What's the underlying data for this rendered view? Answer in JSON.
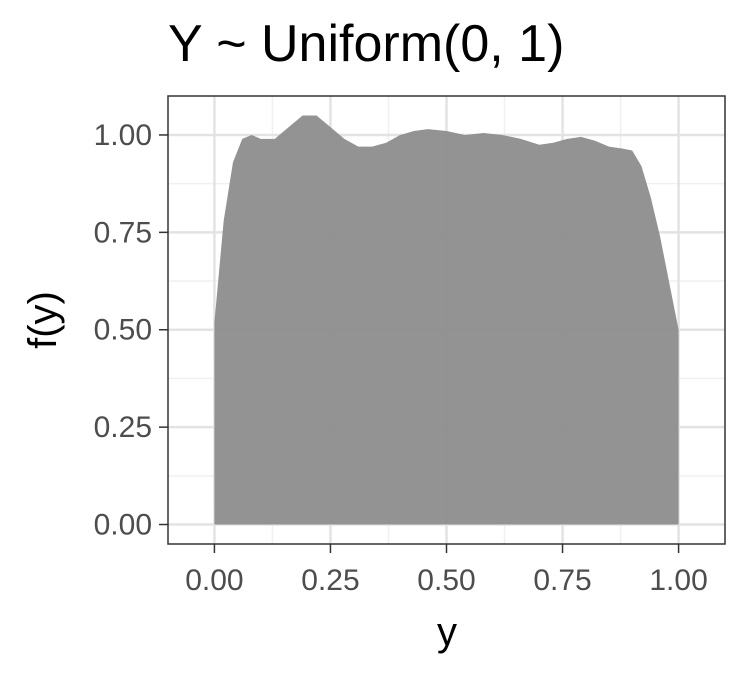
{
  "chart_data": {
    "type": "area",
    "title": "Y ~ Uniform(0, 1)",
    "xlabel": "y",
    "ylabel": "f(y)",
    "xlim": [
      -0.1,
      1.1
    ],
    "ylim": [
      -0.05,
      1.1
    ],
    "x_ticks": [
      "0.00",
      "0.25",
      "0.50",
      "0.75",
      "1.00"
    ],
    "y_ticks": [
      "0.00",
      "0.25",
      "0.50",
      "0.75",
      "1.00"
    ],
    "grid": true,
    "legend": "none",
    "fill_color": "#8f8f8f",
    "x": [
      0.0,
      0.02,
      0.04,
      0.06,
      0.08,
      0.1,
      0.13,
      0.16,
      0.19,
      0.22,
      0.25,
      0.28,
      0.31,
      0.34,
      0.37,
      0.4,
      0.43,
      0.46,
      0.5,
      0.54,
      0.58,
      0.62,
      0.66,
      0.7,
      0.73,
      0.76,
      0.79,
      0.82,
      0.85,
      0.88,
      0.9,
      0.92,
      0.94,
      0.96,
      0.98,
      1.0
    ],
    "y": [
      0.52,
      0.78,
      0.93,
      0.99,
      1.0,
      0.99,
      0.99,
      1.02,
      1.05,
      1.05,
      1.02,
      0.99,
      0.97,
      0.97,
      0.98,
      1.0,
      1.01,
      1.015,
      1.01,
      1.0,
      1.005,
      1.0,
      0.99,
      0.975,
      0.98,
      0.99,
      0.995,
      0.985,
      0.97,
      0.965,
      0.96,
      0.92,
      0.84,
      0.74,
      0.62,
      0.5
    ]
  }
}
